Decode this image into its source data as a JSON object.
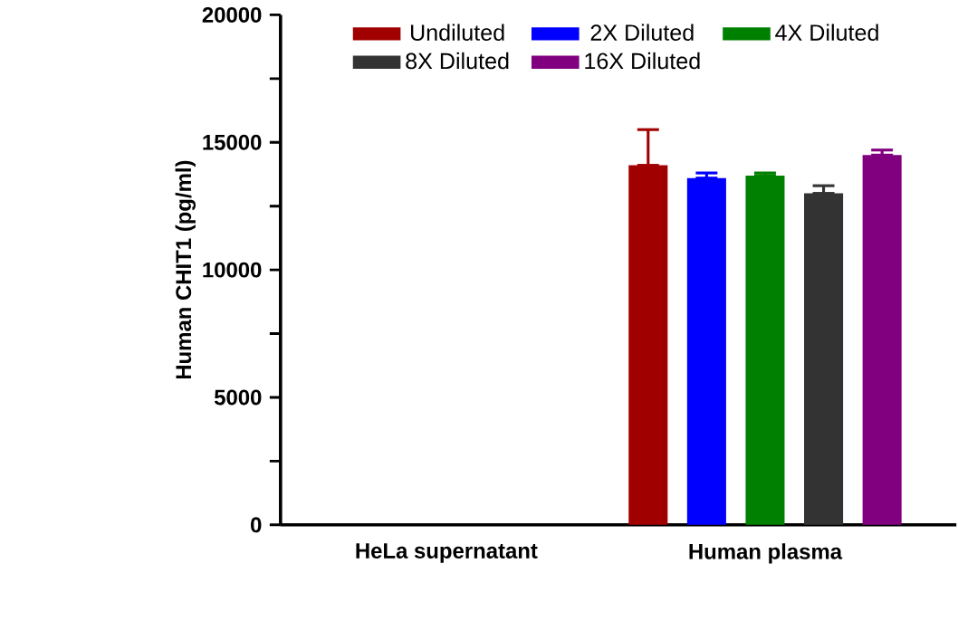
{
  "chart_data": {
    "type": "bar",
    "ylabel": "Human CHIT1 (pg/ml)",
    "categories": [
      "HeLa supernatant",
      "Human plasma"
    ],
    "series": [
      {
        "name": "Undiluted",
        "color": "#a00000",
        "values": [
          null,
          14100
        ],
        "errors": [
          null,
          [
            14100,
            15500
          ]
        ]
      },
      {
        "name": "2X Diluted",
        "color": "#0000ff",
        "values": [
          null,
          13600
        ],
        "errors": [
          null,
          [
            13600,
            13800
          ]
        ]
      },
      {
        "name": "4X Diluted",
        "color": "#008000",
        "values": [
          null,
          13700
        ],
        "errors": [
          null,
          [
            13700,
            13800
          ]
        ]
      },
      {
        "name": "8X Diluted",
        "color": "#333333",
        "values": [
          null,
          13000
        ],
        "errors": [
          null,
          [
            13000,
            13300
          ]
        ]
      },
      {
        "name": "16X Diluted",
        "color": "#800080",
        "values": [
          null,
          14500
        ],
        "errors": [
          null,
          [
            14500,
            14700
          ]
        ]
      }
    ],
    "ylim": [
      0,
      20000
    ],
    "yticks": [
      0,
      {
        "value": 2500,
        "label": null
      },
      5000,
      {
        "value": 7500,
        "label": null
      },
      10000,
      {
        "value": 12500,
        "label": null
      },
      15000,
      {
        "value": 17500,
        "label": null
      },
      20000
    ],
    "legend": "top"
  }
}
